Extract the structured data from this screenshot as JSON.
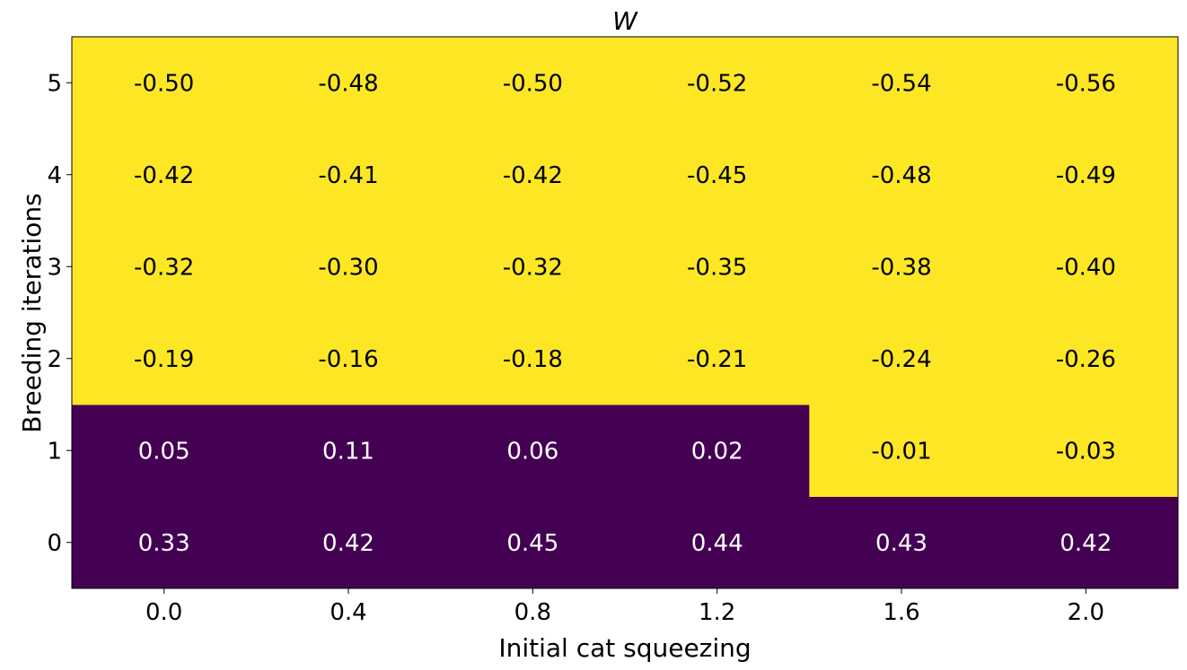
{
  "chart_data": {
    "type": "heatmap",
    "title": "W",
    "xlabel": "Initial cat squeezing",
    "ylabel": "Breeding iterations",
    "x_ticks": [
      "0.0",
      "0.4",
      "0.8",
      "1.2",
      "1.6",
      "2.0"
    ],
    "y_ticks": [
      "0",
      "1",
      "2",
      "3",
      "4",
      "5"
    ],
    "rows": [
      {
        "y": "0",
        "values": [
          0.33,
          0.42,
          0.45,
          0.44,
          0.43,
          0.42
        ],
        "labels": [
          "0.33",
          "0.42",
          "0.45",
          "0.44",
          "0.43",
          "0.42"
        ]
      },
      {
        "y": "1",
        "values": [
          0.05,
          0.11,
          0.06,
          0.02,
          -0.01,
          -0.03
        ],
        "labels": [
          "0.05",
          "0.11",
          "0.06",
          "0.02",
          "-0.01",
          "-0.03"
        ]
      },
      {
        "y": "2",
        "values": [
          -0.19,
          -0.16,
          -0.18,
          -0.21,
          -0.24,
          -0.26
        ],
        "labels": [
          "-0.19",
          "-0.16",
          "-0.18",
          "-0.21",
          "-0.24",
          "-0.26"
        ]
      },
      {
        "y": "3",
        "values": [
          -0.32,
          -0.3,
          -0.32,
          -0.35,
          -0.38,
          -0.4
        ],
        "labels": [
          "-0.32",
          "-0.30",
          "-0.32",
          "-0.35",
          "-0.38",
          "-0.40"
        ]
      },
      {
        "y": "4",
        "values": [
          -0.42,
          -0.41,
          -0.42,
          -0.45,
          -0.48,
          -0.49
        ],
        "labels": [
          "-0.42",
          "-0.41",
          "-0.42",
          "-0.45",
          "-0.48",
          "-0.49"
        ]
      },
      {
        "y": "5",
        "values": [
          -0.5,
          -0.48,
          -0.5,
          -0.52,
          -0.54,
          -0.56
        ],
        "labels": [
          "-0.50",
          "-0.48",
          "-0.50",
          "-0.52",
          "-0.54",
          "-0.56"
        ]
      }
    ],
    "colormap": {
      "positive": "#440154",
      "negative": "#fde725"
    },
    "text_colors": {
      "on_positive": "#ffffff",
      "on_negative": "#000000"
    }
  }
}
